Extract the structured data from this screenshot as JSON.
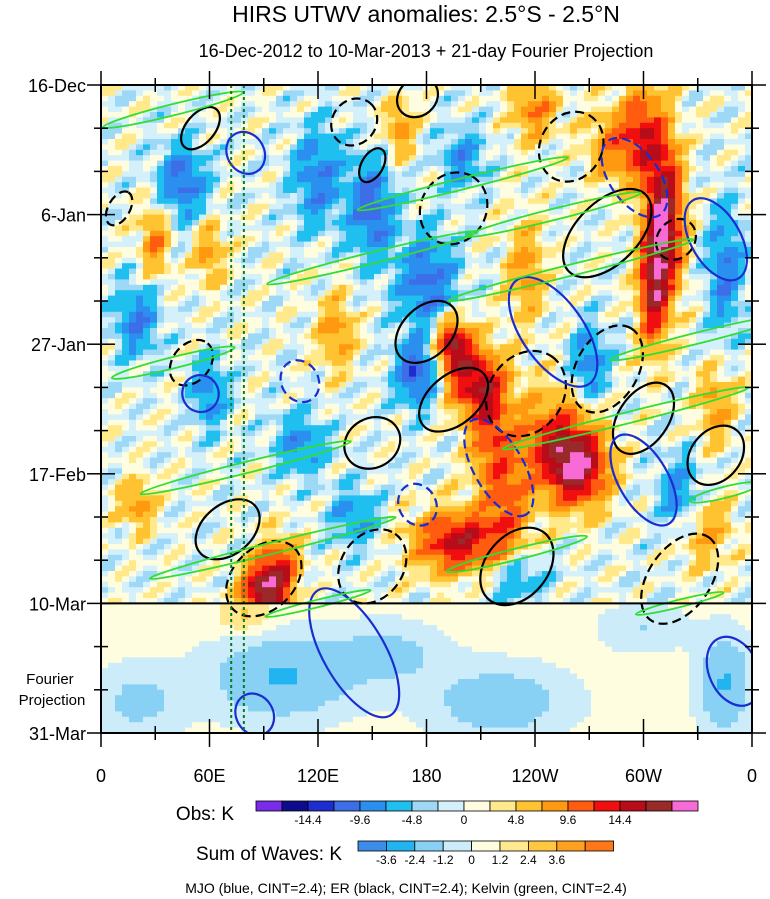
{
  "chart_data": {
    "type": "heatmap",
    "title": "HIRS UTWV anomalies: 2.5°S - 2.5°N",
    "subtitle": "16-Dec-2012 to 10-Mar-2013 + 21-day Fourier Projection",
    "x_ticks": [
      {
        "lon": 0,
        "label": "0"
      },
      {
        "lon": 60,
        "label": "60E"
      },
      {
        "lon": 120,
        "label": "120E"
      },
      {
        "lon": 180,
        "label": "180"
      },
      {
        "lon": 240,
        "label": "120W"
      },
      {
        "lon": 300,
        "label": "60W"
      },
      {
        "lon": 360,
        "label": "0"
      }
    ],
    "x_range": [
      0,
      360
    ],
    "y_ticks": [
      {
        "day": 0,
        "label": "16-Dec"
      },
      {
        "day": 21,
        "label": "6-Jan"
      },
      {
        "day": 42,
        "label": "27-Jan"
      },
      {
        "day": 63,
        "label": "17-Feb"
      },
      {
        "day": 84,
        "label": "10-Mar"
      },
      {
        "day": 105,
        "label": "31-Mar"
      }
    ],
    "y_range_days": [
      0,
      105
    ],
    "observation_end_day": 84,
    "projection_label": "Fourier\nProjection",
    "reference_lines_lon": [
      72,
      79
    ],
    "obs_colorbar": {
      "label": "Obs: K",
      "colors": [
        "#7a2bea",
        "#0c0c8c",
        "#1e2dd0",
        "#3c6ee8",
        "#2b8ff0",
        "#1fc0f0",
        "#9ed8f7",
        "#d3f0fb",
        "#fffde0",
        "#ffe98a",
        "#ffc230",
        "#ff9a10",
        "#ff5c10",
        "#f00e0e",
        "#b80c1a",
        "#9a2a2a",
        "#f86ad6"
      ],
      "tick_labels": [
        "-14.4",
        "-9.6",
        "-4.8",
        "0",
        "4.8",
        "9.6",
        "14.4"
      ]
    },
    "waves_colorbar": {
      "label": "Sum of Waves: K",
      "colors": [
        "#3c8ce8",
        "#22b4f0",
        "#88d0f4",
        "#ccecfa",
        "#fffde0",
        "#ffe890",
        "#ffc840",
        "#ffa020",
        "#ff7818"
      ],
      "tick_labels": [
        "-3.6",
        "-2.4",
        "-1.2",
        "0",
        "1.2",
        "2.4",
        "3.6"
      ]
    },
    "legend_note": "MJO (blue, CINT=2.4); ER (black, CINT=2.4); Kelvin (green, CINT=2.4)",
    "series": [
      {
        "name": "MJO",
        "color": "#1a2dd0"
      },
      {
        "name": "ER",
        "color": "#000000"
      },
      {
        "name": "Kelvin",
        "color": "#33dd33"
      }
    ],
    "anomaly_features": [
      {
        "lon": 312,
        "day": 22,
        "value": 16,
        "rlon": 10,
        "rday": 12
      },
      {
        "lon": 305,
        "day": 33,
        "value": 12,
        "rlon": 8,
        "rday": 10
      },
      {
        "lon": 300,
        "day": 8,
        "value": 10,
        "rlon": 12,
        "rday": 8
      },
      {
        "lon": 282,
        "day": 10,
        "value": 6,
        "rlon": 14,
        "rday": 6
      },
      {
        "lon": 240,
        "day": 4,
        "value": 7,
        "rlon": 12,
        "rday": 5
      },
      {
        "lon": 265,
        "day": 62,
        "value": 14,
        "rlon": 16,
        "rday": 6
      },
      {
        "lon": 250,
        "day": 58,
        "value": 10,
        "rlon": 20,
        "rday": 8
      },
      {
        "lon": 195,
        "day": 42,
        "value": 15,
        "rlon": 10,
        "rday": 4
      },
      {
        "lon": 205,
        "day": 48,
        "value": 10,
        "rlon": 16,
        "rday": 5
      },
      {
        "lon": 215,
        "day": 55,
        "value": 9,
        "rlon": 12,
        "rday": 10
      },
      {
        "lon": 198,
        "day": 74,
        "value": 13,
        "rlon": 24,
        "rday": 5
      },
      {
        "lon": 90,
        "day": 82,
        "value": 16,
        "rlon": 12,
        "rday": 5
      },
      {
        "lon": 100,
        "day": 78,
        "value": 8,
        "rlon": 10,
        "rday": 5
      },
      {
        "lon": 130,
        "day": 40,
        "value": 6,
        "rlon": 10,
        "rday": 6
      },
      {
        "lon": 20,
        "day": 68,
        "value": 6,
        "rlon": 10,
        "rday": 4
      },
      {
        "lon": 165,
        "day": 7,
        "value": 6,
        "rlon": 8,
        "rday": 5
      },
      {
        "lon": 340,
        "day": 52,
        "value": 6,
        "rlon": 10,
        "rday": 6
      },
      {
        "lon": 30,
        "day": 25,
        "value": 7,
        "rlon": 8,
        "rday": 6
      },
      {
        "lon": 60,
        "day": 27,
        "value": 6,
        "rlon": 8,
        "rday": 5
      },
      {
        "lon": 235,
        "day": 30,
        "value": 6,
        "rlon": 10,
        "rday": 8
      },
      {
        "lon": 225,
        "day": 68,
        "value": 7,
        "rlon": 12,
        "rday": 8
      },
      {
        "lon": 335,
        "day": 72,
        "value": 5,
        "rlon": 14,
        "rday": 6
      },
      {
        "lon": 150,
        "day": 20,
        "value": -9,
        "rlon": 12,
        "rday": 8
      },
      {
        "lon": 180,
        "day": 32,
        "value": -8,
        "rlon": 16,
        "rday": 8
      },
      {
        "lon": 120,
        "day": 15,
        "value": -7,
        "rlon": 14,
        "rday": 8
      },
      {
        "lon": 45,
        "day": 16,
        "value": -8,
        "rlon": 14,
        "rday": 6
      },
      {
        "lon": 20,
        "day": 38,
        "value": -7,
        "rlon": 12,
        "rday": 6
      },
      {
        "lon": 175,
        "day": 47,
        "value": -10,
        "rlon": 12,
        "rday": 5
      },
      {
        "lon": 345,
        "day": 30,
        "value": -7,
        "rlon": 10,
        "rday": 10
      },
      {
        "lon": 320,
        "day": 66,
        "value": -6,
        "rlon": 12,
        "rday": 6
      },
      {
        "lon": 200,
        "day": 12,
        "value": -6,
        "rlon": 12,
        "rday": 5
      },
      {
        "lon": 60,
        "day": 50,
        "value": -6,
        "rlon": 10,
        "rday": 6
      },
      {
        "lon": 110,
        "day": 58,
        "value": -6,
        "rlon": 14,
        "rday": 5
      },
      {
        "lon": 140,
        "day": 70,
        "value": -5,
        "rlon": 14,
        "rday": 5
      },
      {
        "lon": 270,
        "day": 45,
        "value": -7,
        "rlon": 10,
        "rday": 6
      },
      {
        "lon": 230,
        "day": 80,
        "value": -5,
        "rlon": 16,
        "rday": 4
      }
    ],
    "projection_features": [
      {
        "lon": 100,
        "day": 96,
        "value": -2.5,
        "rlon": 40,
        "rday": 7
      },
      {
        "lon": 160,
        "day": 92,
        "value": -1.5,
        "rlon": 30,
        "rday": 5
      },
      {
        "lon": 220,
        "day": 100,
        "value": -2.0,
        "rlon": 40,
        "rday": 6
      },
      {
        "lon": 20,
        "day": 100,
        "value": -1.5,
        "rlon": 25,
        "rday": 6
      },
      {
        "lon": 345,
        "day": 97,
        "value": -2.5,
        "rlon": 15,
        "rday": 8
      },
      {
        "lon": 300,
        "day": 88,
        "value": -1.2,
        "rlon": 25,
        "rday": 4
      },
      {
        "lon": 80,
        "day": 86,
        "value": 1.5,
        "rlon": 15,
        "rday": 3
      }
    ],
    "contours": [
      {
        "wave": "ER",
        "lon": 55,
        "day": 7,
        "rlon": 8,
        "rday": 4,
        "angle": -50,
        "dashed": false
      },
      {
        "wave": "ER",
        "lon": 140,
        "day": 6,
        "rlon": 12,
        "rday": 4,
        "angle": -50,
        "dashed": true
      },
      {
        "wave": "ER",
        "lon": 175,
        "day": 2,
        "rlon": 12,
        "rday": 3,
        "angle": -40,
        "dashed": false
      },
      {
        "wave": "ER",
        "lon": 150,
        "day": 13,
        "rlon": 6,
        "rday": 3,
        "angle": -60,
        "dashed": false
      },
      {
        "wave": "ER",
        "lon": 260,
        "day": 10,
        "rlon": 20,
        "rday": 5,
        "angle": -60,
        "dashed": true
      },
      {
        "wave": "ER",
        "lon": 195,
        "day": 20,
        "rlon": 18,
        "rday": 6,
        "angle": -60,
        "dashed": true
      },
      {
        "wave": "ER",
        "lon": 280,
        "day": 24,
        "rlon": 30,
        "rday": 5,
        "angle": -45,
        "dashed": false
      },
      {
        "wave": "ER",
        "lon": 318,
        "day": 25,
        "rlon": 12,
        "rday": 3,
        "angle": -50,
        "dashed": true
      },
      {
        "wave": "ER",
        "lon": 10,
        "day": 20,
        "rlon": 6,
        "rday": 3,
        "angle": -60,
        "dashed": true
      },
      {
        "wave": "ER",
        "lon": 180,
        "day": 40,
        "rlon": 20,
        "rday": 4,
        "angle": -45,
        "dashed": false
      },
      {
        "wave": "ER",
        "lon": 195,
        "day": 51,
        "rlon": 22,
        "rday": 4,
        "angle": -40,
        "dashed": false
      },
      {
        "wave": "ER",
        "lon": 150,
        "day": 58,
        "rlon": 16,
        "rday": 4,
        "angle": -30,
        "dashed": false
      },
      {
        "wave": "ER",
        "lon": 235,
        "day": 50,
        "rlon": 25,
        "rday": 6,
        "angle": -55,
        "dashed": true
      },
      {
        "wave": "ER",
        "lon": 280,
        "day": 46,
        "rlon": 26,
        "rday": 5,
        "angle": -60,
        "dashed": true
      },
      {
        "wave": "ER",
        "lon": 300,
        "day": 54,
        "rlon": 22,
        "rday": 4,
        "angle": -55,
        "dashed": false
      },
      {
        "wave": "ER",
        "lon": 340,
        "day": 60,
        "rlon": 18,
        "rday": 4,
        "angle": -50,
        "dashed": false
      },
      {
        "wave": "ER",
        "lon": 70,
        "day": 72,
        "rlon": 20,
        "rday": 4,
        "angle": -40,
        "dashed": false
      },
      {
        "wave": "ER",
        "lon": 90,
        "day": 80,
        "rlon": 24,
        "rday": 5,
        "angle": -45,
        "dashed": true
      },
      {
        "wave": "ER",
        "lon": 150,
        "day": 78,
        "rlon": 22,
        "rday": 5,
        "angle": -55,
        "dashed": true
      },
      {
        "wave": "ER",
        "lon": 230,
        "day": 78,
        "rlon": 24,
        "rday": 5,
        "angle": -50,
        "dashed": false
      },
      {
        "wave": "ER",
        "lon": 320,
        "day": 80,
        "rlon": 28,
        "rday": 5,
        "angle": -55,
        "dashed": true
      },
      {
        "wave": "ER",
        "lon": 50,
        "day": 45,
        "rlon": 14,
        "rday": 3,
        "angle": -50,
        "dashed": true
      },
      {
        "wave": "MJO",
        "lon": 80,
        "day": 11,
        "rlon": 12,
        "rday": 3,
        "angle": 60,
        "dashed": false
      },
      {
        "wave": "MJO",
        "lon": 295,
        "day": 15,
        "rlon": 25,
        "rday": 4,
        "angle": 55,
        "dashed": true
      },
      {
        "wave": "MJO",
        "lon": 250,
        "day": 40,
        "rlon": 35,
        "rday": 5,
        "angle": 55,
        "dashed": false
      },
      {
        "wave": "MJO",
        "lon": 340,
        "day": 25,
        "rlon": 25,
        "rday": 4,
        "angle": 60,
        "dashed": false
      },
      {
        "wave": "MJO",
        "lon": 55,
        "day": 50,
        "rlon": 10,
        "rday": 3,
        "angle": 60,
        "dashed": false
      },
      {
        "wave": "MJO",
        "lon": 110,
        "day": 48,
        "rlon": 12,
        "rday": 3,
        "angle": 60,
        "dashed": true
      },
      {
        "wave": "MJO",
        "lon": 220,
        "day": 62,
        "rlon": 30,
        "rday": 4,
        "angle": 60,
        "dashed": true
      },
      {
        "wave": "MJO",
        "lon": 300,
        "day": 64,
        "rlon": 28,
        "rday": 4,
        "angle": 60,
        "dashed": false
      },
      {
        "wave": "MJO",
        "lon": 175,
        "day": 68,
        "rlon": 12,
        "rday": 3,
        "angle": 60,
        "dashed": true
      },
      {
        "wave": "MJO",
        "lon": 140,
        "day": 92,
        "rlon": 40,
        "rday": 5,
        "angle": 60,
        "dashed": false
      },
      {
        "wave": "MJO",
        "lon": 350,
        "day": 95,
        "rlon": 20,
        "rday": 4,
        "angle": 65,
        "dashed": false
      },
      {
        "wave": "MJO",
        "lon": 85,
        "day": 102,
        "rlon": 12,
        "rday": 3,
        "angle": 60,
        "dashed": false
      },
      {
        "wave": "Kelvin",
        "lon": 40,
        "day": 4,
        "rlon": 40,
        "rday": 0.9,
        "angle": -14,
        "dashed": false
      },
      {
        "wave": "Kelvin",
        "lon": 200,
        "day": 16,
        "rlon": 60,
        "rday": 0.9,
        "angle": -14,
        "dashed": false
      },
      {
        "wave": "Kelvin",
        "lon": 250,
        "day": 21,
        "rlon": 50,
        "rday": 0.9,
        "angle": -14,
        "dashed": false
      },
      {
        "wave": "Kelvin",
        "lon": 260,
        "day": 30,
        "rlon": 70,
        "rday": 0.9,
        "angle": -14,
        "dashed": false
      },
      {
        "wave": "Kelvin",
        "lon": 330,
        "day": 41,
        "rlon": 50,
        "rday": 0.9,
        "angle": -14,
        "dashed": false
      },
      {
        "wave": "Kelvin",
        "lon": 40,
        "day": 45,
        "rlon": 35,
        "rday": 0.9,
        "angle": -14,
        "dashed": false
      },
      {
        "wave": "Kelvin",
        "lon": 290,
        "day": 54,
        "rlon": 70,
        "rday": 0.9,
        "angle": -14,
        "dashed": false
      },
      {
        "wave": "Kelvin",
        "lon": 80,
        "day": 62,
        "rlon": 60,
        "rday": 0.9,
        "angle": -14,
        "dashed": false
      },
      {
        "wave": "Kelvin",
        "lon": 345,
        "day": 66,
        "rlon": 20,
        "rday": 0.9,
        "angle": -14,
        "dashed": false
      },
      {
        "wave": "Kelvin",
        "lon": 95,
        "day": 75,
        "rlon": 70,
        "rday": 0.9,
        "angle": -14,
        "dashed": false
      },
      {
        "wave": "Kelvin",
        "lon": 230,
        "day": 76,
        "rlon": 40,
        "rday": 0.9,
        "angle": -14,
        "dashed": false
      },
      {
        "wave": "Kelvin",
        "lon": 150,
        "day": 28,
        "rlon": 60,
        "rday": 0.9,
        "angle": -14,
        "dashed": false
      },
      {
        "wave": "Kelvin",
        "lon": 320,
        "day": 84,
        "rlon": 25,
        "rday": 0.6,
        "angle": -14,
        "dashed": false
      },
      {
        "wave": "Kelvin",
        "lon": 120,
        "day": 84,
        "rlon": 30,
        "rday": 0.6,
        "angle": -14,
        "dashed": false
      }
    ]
  }
}
